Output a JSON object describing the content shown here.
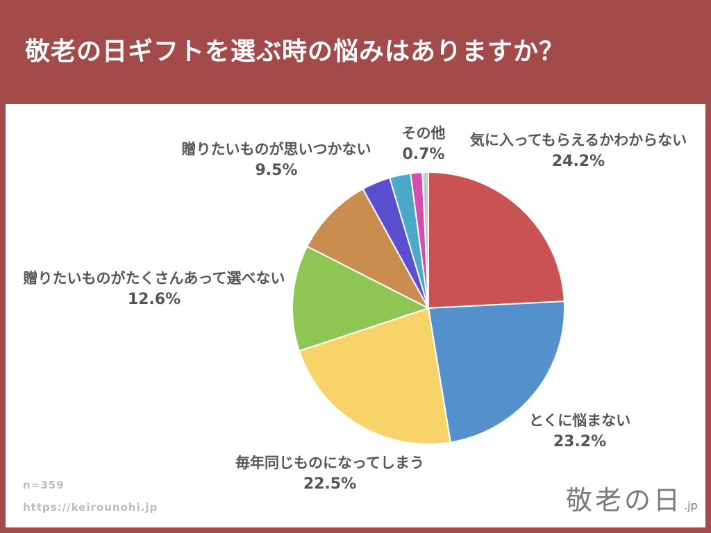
{
  "header": {
    "title": "敬老の日ギフトを選ぶ時の悩みはありますか？"
  },
  "footer": {
    "sample": "n=359",
    "url": "https://keirounohi.jp"
  },
  "logo": {
    "script": "敬老の日",
    "suffix": ".jp"
  },
  "chart_data": {
    "type": "pie",
    "title": "敬老の日ギフトを選ぶ時の悩みはありますか？",
    "start": "12 o'clock, clockwise",
    "slices": [
      {
        "label": "気に入ってもらえるかわからない",
        "value": 24.2,
        "value_label": "24.2%",
        "color": "#c95353"
      },
      {
        "label": "とくに悩まない",
        "value": 23.2,
        "value_label": "23.2%",
        "color": "#5390cc"
      },
      {
        "label": "毎年同じものになってしまう",
        "value": 22.5,
        "value_label": "22.5%",
        "color": "#f7d36a"
      },
      {
        "label": "贈りたいものがたくさんあって選べない",
        "value": 12.6,
        "value_label": "12.6%",
        "color": "#8fc653"
      },
      {
        "label": "贈りたいものが思いつかない",
        "value": 9.5,
        "value_label": "9.5%",
        "color": "#c88d4f"
      },
      {
        "label": "",
        "value": 3.4,
        "value_label": "",
        "color": "#5a4fcf"
      },
      {
        "label": "",
        "value": 2.5,
        "value_label": "",
        "color": "#4aa8c8"
      },
      {
        "label": "",
        "value": 1.4,
        "value_label": "",
        "color": "#d24fb0"
      },
      {
        "label": "その他",
        "value": 0.7,
        "value_label": "0.7%",
        "color": "#c9c9c9"
      }
    ]
  }
}
